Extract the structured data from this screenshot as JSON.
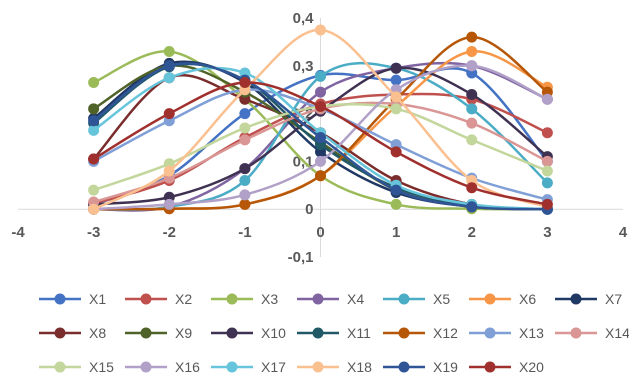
{
  "chart_data": {
    "type": "line",
    "title": "",
    "xlabel": "",
    "ylabel": "",
    "xlim": [
      -4,
      4
    ],
    "ylim": [
      -0.1,
      0.4
    ],
    "x_ticks": [
      "-4",
      "-3",
      "-2",
      "-1",
      "0",
      "1",
      "2",
      "3",
      "4"
    ],
    "y_ticks": [
      "-0,1",
      "0",
      "0,1",
      "0,2",
      "0,3",
      "0,4"
    ],
    "grid": false,
    "legend_position": "bottom",
    "x": [
      -3,
      -2,
      -1,
      0,
      1,
      2,
      3
    ],
    "series": [
      {
        "name": "X1",
        "color": "#4472C4",
        "values": [
          0.01,
          0.07,
          0.2,
          0.28,
          0.27,
          0.285,
          0.1
        ]
      },
      {
        "name": "X2",
        "color": "#C0504D",
        "values": [
          0.012,
          0.06,
          0.15,
          0.22,
          0.24,
          0.23,
          0.16
        ]
      },
      {
        "name": "X3",
        "color": "#9BBB59",
        "values": [
          0.265,
          0.33,
          0.23,
          0.07,
          0.01,
          0.001,
          0.0
        ]
      },
      {
        "name": "X4",
        "color": "#8064A2",
        "values": [
          0.0,
          0.005,
          0.085,
          0.245,
          0.295,
          0.3,
          0.23
        ]
      },
      {
        "name": "X5",
        "color": "#4BACC6",
        "values": [
          0.0,
          0.005,
          0.06,
          0.278,
          0.295,
          0.21,
          0.055
        ]
      },
      {
        "name": "X6",
        "color": "#F79646",
        "values": [
          0.0,
          0.001,
          0.01,
          0.07,
          0.215,
          0.33,
          0.255
        ]
      },
      {
        "name": "X7",
        "color": "#1F3864",
        "values": [
          0.19,
          0.305,
          0.265,
          0.12,
          0.035,
          0.005,
          0.0
        ]
      },
      {
        "name": "X8",
        "color": "#7B2C2C",
        "values": [
          0.105,
          0.275,
          0.23,
          0.16,
          0.06,
          0.01,
          0.0
        ]
      },
      {
        "name": "X9",
        "color": "#4F6228",
        "values": [
          0.21,
          0.3,
          0.245,
          0.14,
          0.04,
          0.005,
          0.0
        ]
      },
      {
        "name": "X10",
        "color": "#3F3151",
        "values": [
          0.01,
          0.025,
          0.085,
          0.205,
          0.295,
          0.24,
          0.11
        ]
      },
      {
        "name": "X11",
        "color": "#215967",
        "values": [
          0.18,
          0.298,
          0.27,
          0.135,
          0.045,
          0.008,
          0.0
        ]
      },
      {
        "name": "X12",
        "color": "#B65708",
        "values": [
          0.0,
          0.001,
          0.01,
          0.07,
          0.23,
          0.36,
          0.245
        ]
      },
      {
        "name": "X13",
        "color": "#7F9FD6",
        "values": [
          0.1,
          0.185,
          0.25,
          0.21,
          0.135,
          0.065,
          0.02
        ]
      },
      {
        "name": "X14",
        "color": "#D99694",
        "values": [
          0.015,
          0.065,
          0.145,
          0.21,
          0.22,
          0.18,
          0.1
        ]
      },
      {
        "name": "X15",
        "color": "#C3D69B",
        "values": [
          0.04,
          0.095,
          0.17,
          0.215,
          0.21,
          0.145,
          0.08
        ]
      },
      {
        "name": "X16",
        "color": "#B1A0C7",
        "values": [
          0.0,
          0.01,
          0.03,
          0.1,
          0.25,
          0.3,
          0.23
        ]
      },
      {
        "name": "X17",
        "color": "#66C5DB",
        "values": [
          0.165,
          0.275,
          0.285,
          0.16,
          0.05,
          0.01,
          0.0
        ]
      },
      {
        "name": "X18",
        "color": "#FAC090",
        "values": [
          0.0,
          0.08,
          0.25,
          0.375,
          0.235,
          0.06,
          0.005
        ]
      },
      {
        "name": "X19",
        "color": "#2F5597",
        "values": [
          0.185,
          0.3,
          0.27,
          0.15,
          0.04,
          0.005,
          0.0
        ]
      },
      {
        "name": "X20",
        "color": "#A0302E",
        "values": [
          0.105,
          0.2,
          0.265,
          0.215,
          0.12,
          0.045,
          0.01
        ]
      }
    ]
  }
}
